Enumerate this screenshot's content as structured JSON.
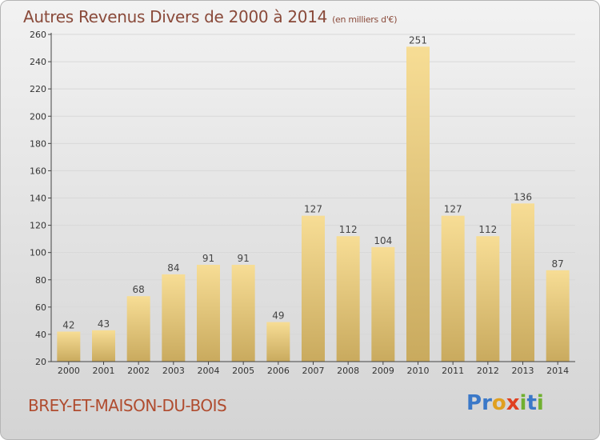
{
  "title": "Autres Revenus Divers de 2000 à 2014",
  "subtitle": "(en milliers d'€)",
  "commune": "BREY-ET-MAISON-DU-BOIS",
  "logo": {
    "text": "Proxiti",
    "letters": [
      "P",
      "r",
      "o",
      "x",
      "i",
      "t",
      "i"
    ],
    "colors": [
      "#3a78c8",
      "#3a78c8",
      "#e0a020",
      "#e04020",
      "#70b030",
      "#3a78c8",
      "#70b030"
    ]
  },
  "colors": {
    "bar_light": "#f7dd95",
    "bar_dark": "#c9aa5e",
    "axis": "#444444",
    "grid": "#d8d8d8",
    "title": "#8a4a3a"
  },
  "chart_data": {
    "type": "bar",
    "categories": [
      "2000",
      "2001",
      "2002",
      "2003",
      "2004",
      "2005",
      "2006",
      "2007",
      "2008",
      "2009",
      "2010",
      "2011",
      "2012",
      "2013",
      "2014"
    ],
    "values": [
      42,
      43,
      68,
      84,
      91,
      91,
      49,
      127,
      112,
      104,
      251,
      127,
      112,
      136,
      87
    ],
    "title": "Autres Revenus Divers de 2000 à 2014",
    "ylabel": "(en milliers d'€)",
    "ylim": [
      20,
      260
    ],
    "yticks": [
      20,
      40,
      60,
      80,
      100,
      120,
      140,
      160,
      180,
      200,
      220,
      240,
      260
    ],
    "grid": true,
    "data_labels": true
  }
}
